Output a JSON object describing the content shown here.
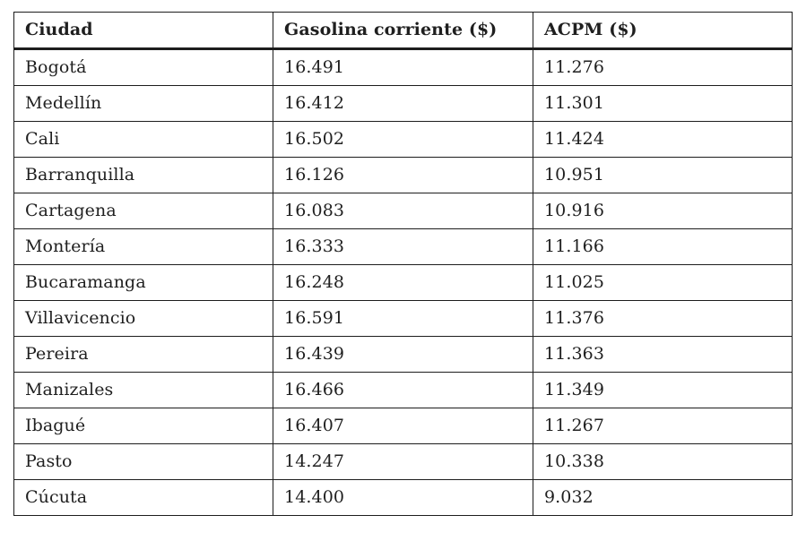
{
  "chart_data": {
    "type": "table",
    "columns": [
      "Ciudad",
      "Gasolina corriente ($)",
      "ACPM ($)"
    ],
    "rows": [
      [
        "Bogotá",
        "16.491",
        "11.276"
      ],
      [
        "Medellín",
        "16.412",
        "11.301"
      ],
      [
        "Cali",
        "16.502",
        "11.424"
      ],
      [
        "Barranquilla",
        "16.126",
        "10.951"
      ],
      [
        "Cartagena",
        "16.083",
        "10.916"
      ],
      [
        "Montería",
        "16.333",
        "11.166"
      ],
      [
        "Bucaramanga",
        "16.248",
        "11.025"
      ],
      [
        "Villavicencio",
        "16.591",
        "11.376"
      ],
      [
        "Pereira",
        "16.439",
        "11.363"
      ],
      [
        "Manizales",
        "16.466",
        "11.349"
      ],
      [
        "Ibagué",
        "16.407",
        "11.267"
      ],
      [
        "Pasto",
        "14.247",
        "10.338"
      ],
      [
        "Cúcuta",
        "14.400",
        "9.032"
      ]
    ],
    "layout": {
      "grid": true,
      "header_bold": true,
      "border_color": "#1d1d1d",
      "text_color": "#1f1f1f",
      "background": "#ffffff"
    }
  }
}
